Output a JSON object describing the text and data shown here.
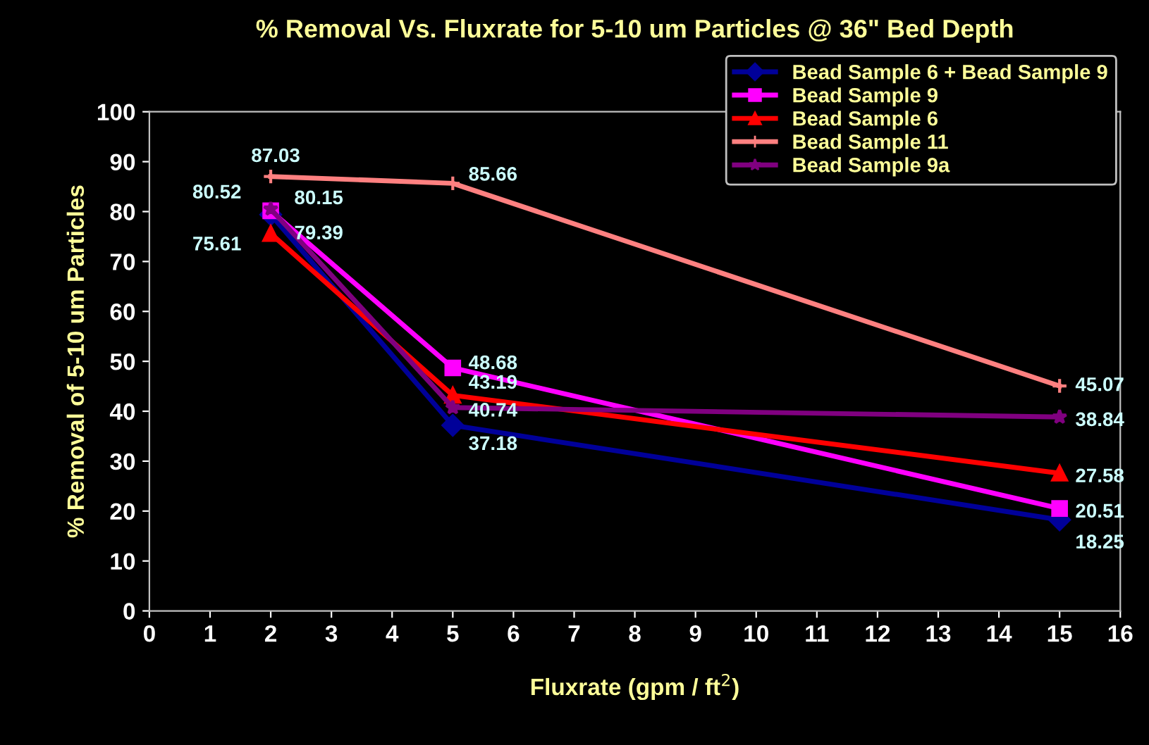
{
  "chart_data": {
    "type": "line",
    "title": "% Removal Vs. Fluxrate for 5-10 um Particles @ 36\" Bed Depth",
    "xlabel": "Fluxrate (gpm / ft$^{2}$)",
    "ylabel": "% Removal of 5-10 um Particles",
    "x": [
      2,
      5,
      15
    ],
    "series": [
      {
        "name": "Bead Sample 6 + Bead Sample 9",
        "color": "#000099",
        "marker": "diamond",
        "values": [
          79.39,
          37.18,
          18.25
        ]
      },
      {
        "name": "Bead Sample 9",
        "color": "#ff00ff",
        "marker": "square",
        "values": [
          80.15,
          48.68,
          20.51
        ]
      },
      {
        "name": "Bead Sample 6",
        "color": "#ff0000",
        "marker": "triangle",
        "values": [
          75.61,
          43.19,
          27.58
        ]
      },
      {
        "name": "Bead Sample 11",
        "color": "#ff8080",
        "marker": "cross",
        "values": [
          87.03,
          85.66,
          45.07
        ]
      },
      {
        "name": "Bead Sample 9a",
        "color": "#800080",
        "marker": "star",
        "values": [
          80.52,
          40.74,
          38.84
        ]
      }
    ],
    "xlim": [
      0,
      16
    ],
    "xticks": [
      0,
      1,
      2,
      3,
      4,
      5,
      6,
      7,
      8,
      9,
      10,
      11,
      12,
      13,
      14,
      15,
      16
    ],
    "ylim": [
      0,
      100
    ],
    "yticks": [
      0,
      10,
      20,
      30,
      40,
      50,
      60,
      70,
      80,
      90,
      100
    ],
    "data_labels": true,
    "grid": false,
    "legend": "top right",
    "line_style": "solid"
  }
}
